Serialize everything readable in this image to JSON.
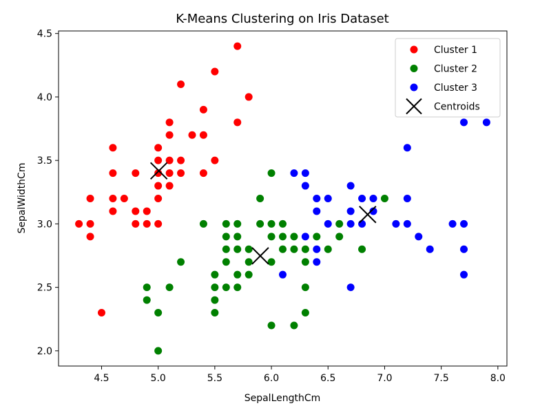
{
  "chart_data": {
    "type": "scatter",
    "title": "K-Means Clustering on Iris Dataset",
    "xlabel": "SepalLengthCm",
    "ylabel": "SepalWidthCm",
    "xlim": [
      4.12,
      8.08
    ],
    "ylim": [
      1.88,
      4.52
    ],
    "xticks": [
      "4.5",
      "5.0",
      "5.5",
      "6.0",
      "6.5",
      "7.0",
      "7.5",
      "8.0"
    ],
    "yticks": [
      "2.0",
      "2.5",
      "3.0",
      "3.5",
      "4.0",
      "4.5"
    ],
    "grid": false,
    "legend_position": "top-right",
    "series": [
      {
        "name": "Cluster 1",
        "color": "#ff0000",
        "marker": "circle",
        "points": [
          [
            4.3,
            3.0
          ],
          [
            4.4,
            3.0
          ],
          [
            4.4,
            2.9
          ],
          [
            4.4,
            3.2
          ],
          [
            4.5,
            2.3
          ],
          [
            4.6,
            3.1
          ],
          [
            4.6,
            3.2
          ],
          [
            4.6,
            3.4
          ],
          [
            4.6,
            3.6
          ],
          [
            4.7,
            3.2
          ],
          [
            4.8,
            3.0
          ],
          [
            4.8,
            3.1
          ],
          [
            4.8,
            3.4
          ],
          [
            4.9,
            3.0
          ],
          [
            4.9,
            3.1
          ],
          [
            5.0,
            3.0
          ],
          [
            5.0,
            3.2
          ],
          [
            5.0,
            3.3
          ],
          [
            5.0,
            3.4
          ],
          [
            5.0,
            3.5
          ],
          [
            5.0,
            3.6
          ],
          [
            5.1,
            3.3
          ],
          [
            5.1,
            3.4
          ],
          [
            5.1,
            3.5
          ],
          [
            5.1,
            3.7
          ],
          [
            5.1,
            3.8
          ],
          [
            5.2,
            3.4
          ],
          [
            5.2,
            3.5
          ],
          [
            5.2,
            4.1
          ],
          [
            5.3,
            3.7
          ],
          [
            5.4,
            3.4
          ],
          [
            5.4,
            3.7
          ],
          [
            5.4,
            3.9
          ],
          [
            5.5,
            3.5
          ],
          [
            5.5,
            4.2
          ],
          [
            5.7,
            3.8
          ],
          [
            5.7,
            4.4
          ],
          [
            5.8,
            4.0
          ]
        ]
      },
      {
        "name": "Cluster 2",
        "color": "#008000",
        "marker": "circle",
        "points": [
          [
            4.9,
            2.4
          ],
          [
            4.9,
            2.5
          ],
          [
            5.0,
            2.0
          ],
          [
            5.0,
            2.3
          ],
          [
            5.1,
            2.5
          ],
          [
            5.2,
            2.7
          ],
          [
            5.4,
            3.0
          ],
          [
            5.5,
            2.3
          ],
          [
            5.5,
            2.4
          ],
          [
            5.5,
            2.5
          ],
          [
            5.5,
            2.6
          ],
          [
            5.6,
            2.5
          ],
          [
            5.6,
            2.7
          ],
          [
            5.6,
            2.8
          ],
          [
            5.6,
            2.9
          ],
          [
            5.6,
            3.0
          ],
          [
            5.7,
            2.5
          ],
          [
            5.7,
            2.6
          ],
          [
            5.7,
            2.8
          ],
          [
            5.7,
            2.9
          ],
          [
            5.7,
            3.0
          ],
          [
            5.8,
            2.6
          ],
          [
            5.8,
            2.7
          ],
          [
            5.8,
            2.8
          ],
          [
            5.9,
            3.0
          ],
          [
            5.9,
            3.2
          ],
          [
            6.0,
            2.2
          ],
          [
            6.0,
            2.7
          ],
          [
            6.0,
            2.9
          ],
          [
            6.0,
            3.0
          ],
          [
            6.0,
            3.4
          ],
          [
            6.1,
            2.8
          ],
          [
            6.1,
            2.9
          ],
          [
            6.1,
            3.0
          ],
          [
            6.2,
            2.2
          ],
          [
            6.2,
            2.8
          ],
          [
            6.2,
            2.9
          ],
          [
            6.3,
            2.3
          ],
          [
            6.3,
            2.5
          ],
          [
            6.3,
            2.7
          ],
          [
            6.3,
            2.8
          ],
          [
            6.4,
            2.9
          ],
          [
            6.5,
            2.8
          ],
          [
            6.6,
            2.9
          ],
          [
            6.6,
            3.0
          ],
          [
            6.8,
            2.8
          ],
          [
            7.0,
            3.2
          ]
        ]
      },
      {
        "name": "Cluster 3",
        "color": "#0000ff",
        "marker": "circle",
        "points": [
          [
            6.1,
            2.6
          ],
          [
            6.2,
            3.4
          ],
          [
            6.3,
            2.9
          ],
          [
            6.3,
            3.3
          ],
          [
            6.3,
            3.4
          ],
          [
            6.4,
            2.7
          ],
          [
            6.4,
            2.8
          ],
          [
            6.4,
            3.1
          ],
          [
            6.4,
            3.2
          ],
          [
            6.5,
            3.0
          ],
          [
            6.5,
            3.2
          ],
          [
            6.7,
            2.5
          ],
          [
            6.7,
            3.0
          ],
          [
            6.7,
            3.1
          ],
          [
            6.7,
            3.3
          ],
          [
            6.8,
            3.0
          ],
          [
            6.8,
            3.2
          ],
          [
            6.9,
            3.1
          ],
          [
            6.9,
            3.2
          ],
          [
            7.1,
            3.0
          ],
          [
            7.2,
            3.0
          ],
          [
            7.2,
            3.2
          ],
          [
            7.2,
            3.6
          ],
          [
            7.3,
            2.9
          ],
          [
            7.4,
            2.8
          ],
          [
            7.6,
            3.0
          ],
          [
            7.7,
            2.6
          ],
          [
            7.7,
            2.8
          ],
          [
            7.7,
            3.0
          ],
          [
            7.7,
            3.8
          ],
          [
            7.9,
            3.8
          ]
        ]
      },
      {
        "name": "Centroids",
        "color": "#000000",
        "marker": "x",
        "points": [
          [
            5.006,
            3.418
          ],
          [
            5.902,
            2.748
          ],
          [
            6.85,
            3.074
          ]
        ]
      }
    ]
  }
}
